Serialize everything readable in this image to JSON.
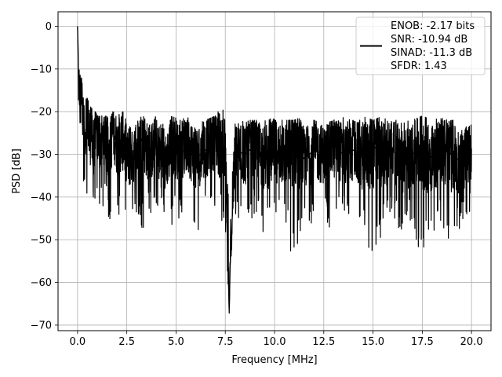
{
  "chart_data": {
    "type": "line",
    "title": "",
    "xlabel": "Frequency [MHz]",
    "ylabel": "PSD [dB]",
    "xlim": [
      -0.99,
      20.99
    ],
    "ylim": [
      -71.3,
      3.4
    ],
    "xticks": [
      0.0,
      2.5,
      5.0,
      7.5,
      10.0,
      12.5,
      15.0,
      17.5,
      20.0
    ],
    "xtick_labels": [
      "0.0",
      "2.5",
      "5.0",
      "7.5",
      "10.0",
      "12.5",
      "15.0",
      "17.5",
      "20.0"
    ],
    "yticks": [
      0,
      -10,
      -20,
      -30,
      -40,
      -50,
      -60,
      -70
    ],
    "ytick_labels": [
      "0",
      "−10",
      "−20",
      "−30",
      "−40",
      "−50",
      "−60",
      "−70"
    ],
    "grid": true,
    "legend_position": "top-right",
    "line_color": "#000000",
    "legend_lines": [
      "ENOB: -2.17 bits",
      "SNR: -10.94 dB",
      "SINAD: -11.3 dB",
      "SFDR: 1.43"
    ],
    "series": [
      {
        "x": [
          0.0,
          0.05,
          0.1,
          0.15,
          0.2,
          0.3,
          0.4,
          0.5,
          0.6,
          0.7,
          0.8,
          0.9,
          1.0,
          1.2,
          1.4,
          1.6,
          1.8,
          2.0,
          2.3,
          2.6,
          3.0,
          3.3,
          3.6,
          4.0,
          4.4,
          4.8,
          5.2,
          5.6,
          6.0,
          6.5,
          7.0,
          7.5,
          7.7,
          7.75,
          8.0,
          8.5,
          9.0,
          9.5,
          10.0,
          10.5,
          11.0,
          11.5,
          12.0,
          12.5,
          13.0,
          13.5,
          14.0,
          14.5,
          15.0,
          15.5,
          16.0,
          16.5,
          17.0,
          17.5,
          18.0,
          18.5,
          19.0,
          19.5,
          20.0
        ],
        "y": [
          0.0,
          -13.0,
          -17.0,
          -20.0,
          -12.0,
          -23.0,
          -30.0,
          -18.0,
          -28.0,
          -23.0,
          -35.0,
          -22.0,
          -26.0,
          -27.0,
          -25.0,
          -31.0,
          -24.0,
          -28.0,
          -26.0,
          -32.0,
          -29.0,
          -26.0,
          -30.0,
          -28.0,
          -33.0,
          -27.0,
          -30.0,
          -28.0,
          -31.0,
          -29.0,
          -26.0,
          -30.0,
          -67.3,
          -56.0,
          -29.0,
          -30.0,
          -28.0,
          -31.0,
          -29.0,
          -30.0,
          -27.0,
          -31.0,
          -29.0,
          -30.0,
          -28.0,
          -30.0,
          -29.0,
          -31.0,
          -28.0,
          -30.0,
          -29.0,
          -32.0,
          -30.0,
          -28.0,
          -31.0,
          -29.0,
          -30.0,
          -32.0,
          -29.0
        ],
        "y_low": [
          0.0,
          -31.0,
          -28.0,
          -35.0,
          -33.0,
          -40.0,
          -38.0,
          -43.0,
          -37.0,
          -47.0,
          -40.0,
          -44.0,
          -42.0,
          -45.0,
          -41.0,
          -46.0,
          -43.0,
          -44.0,
          -47.0,
          -42.0,
          -45.0,
          -48.0,
          -43.0,
          -46.0,
          -44.0,
          -47.0,
          -45.0,
          -43.0,
          -49.0,
          -44.0,
          -46.0,
          -47.0,
          -67.3,
          -56.0,
          -45.0,
          -47.0,
          -44.0,
          -49.0,
          -46.0,
          -47.0,
          -58.0,
          -45.0,
          -47.0,
          -46.0,
          -48.0,
          -45.0,
          -47.0,
          -46.0,
          -57.0,
          -48.0,
          -45.0,
          -49.0,
          -46.0,
          -59.0,
          -48.0,
          -47.0,
          -52.0,
          -46.0,
          -45.0
        ],
        "y_high": [
          0.0,
          -8.0,
          -10.0,
          -11.0,
          -13.0,
          -14.0,
          -16.0,
          -17.0,
          -18.0,
          -19.0,
          -20.0,
          -20.0,
          -21.0,
          -21.0,
          -21.0,
          -21.0,
          -20.0,
          -21.0,
          -20.0,
          -22.0,
          -22.0,
          -21.0,
          -22.0,
          -21.0,
          -23.0,
          -21.0,
          -22.0,
          -21.0,
          -23.0,
          -22.0,
          -21.0,
          -17.0,
          -44.0,
          -44.0,
          -22.0,
          -22.0,
          -22.0,
          -22.0,
          -21.0,
          -22.0,
          -22.0,
          -21.0,
          -22.0,
          -23.0,
          -22.0,
          -21.0,
          -22.0,
          -21.0,
          -22.0,
          -21.0,
          -22.0,
          -22.0,
          -22.0,
          -21.0,
          -22.0,
          -21.0,
          -22.0,
          -22.0,
          -23.0
        ]
      }
    ]
  }
}
